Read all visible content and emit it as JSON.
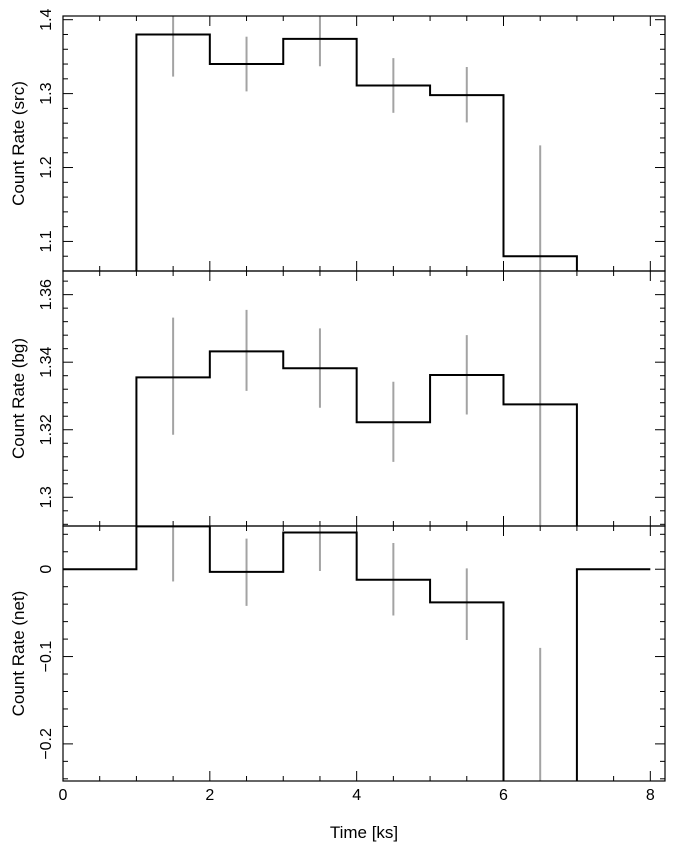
{
  "chart_data": [
    {
      "type": "line",
      "step": true,
      "ylabel": "Count Rate (src)",
      "xlabel": "",
      "xlim": [
        0,
        8.2
      ],
      "ylim": [
        1.06,
        1.405
      ],
      "yticks": [
        1.1,
        1.2,
        1.3,
        1.4
      ],
      "ytick_labels": [
        "1.1",
        "1.2",
        "1.3",
        "1.4"
      ],
      "series": [
        {
          "bin_edges": [
            0,
            1,
            2,
            3,
            4,
            5,
            6,
            7,
            8
          ],
          "values": [
            1.0,
            1.38,
            1.34,
            1.374,
            1.311,
            1.298,
            1.08,
            1.0
          ],
          "bin_centers": [
            1.5,
            2.5,
            3.5,
            4.5,
            5.5,
            6.5
          ],
          "error_low": [
            1.323,
            1.303,
            1.337,
            1.274,
            1.261,
            0.93
          ],
          "error_high": [
            1.405,
            1.377,
            1.405,
            1.348,
            1.336,
            1.23
          ]
        }
      ]
    },
    {
      "type": "line",
      "step": true,
      "ylabel": "Count Rate (bg)",
      "xlabel": "",
      "xlim": [
        0,
        8.2
      ],
      "ylim": [
        1.2915,
        1.367
      ],
      "yticks": [
        1.3,
        1.32,
        1.34,
        1.36
      ],
      "ytick_labels": [
        "1.3",
        "1.32",
        "1.34",
        "1.36"
      ],
      "series": [
        {
          "bin_edges": [
            0,
            1,
            2,
            3,
            4,
            5,
            6,
            7,
            8
          ],
          "values": [
            1.28,
            1.3355,
            1.3432,
            1.3382,
            1.3222,
            1.3362,
            1.3275,
            1.28
          ],
          "bin_centers": [
            1.5,
            2.5,
            3.5,
            4.5,
            5.5,
            6.5
          ],
          "error_low": [
            1.3185,
            1.3315,
            1.3265,
            1.3105,
            1.3245,
            1.2915
          ],
          "error_high": [
            1.3532,
            1.3555,
            1.35,
            1.3342,
            1.348,
            1.367
          ]
        }
      ]
    },
    {
      "type": "line",
      "step": true,
      "ylabel": "Count Rate (net)",
      "xlabel": "Time [ks]",
      "xlim": [
        0,
        8.2
      ],
      "ylim": [
        -0.2425,
        0.0495
      ],
      "xticks": [
        0,
        2,
        4,
        6,
        8
      ],
      "xtick_labels": [
        "0",
        "2",
        "4",
        "6",
        "8"
      ],
      "yticks": [
        -0.2,
        -0.1,
        0
      ],
      "ytick_labels": [
        "−0.2",
        "−0.1",
        "0"
      ],
      "series": [
        {
          "bin_edges": [
            0,
            1,
            2,
            3,
            4,
            5,
            6,
            7,
            8
          ],
          "values": [
            0,
            0.049,
            -0.003,
            0.042,
            -0.012,
            -0.038,
            -0.3,
            0
          ],
          "bin_centers": [
            1.5,
            2.5,
            3.5,
            4.5,
            5.5,
            6.5
          ],
          "error_low": [
            -0.014,
            -0.042,
            -0.002,
            -0.053,
            -0.081,
            -0.3
          ],
          "error_high": [
            0.0495,
            0.035,
            0.0495,
            0.03,
            0.001,
            -0.09
          ]
        }
      ]
    }
  ]
}
